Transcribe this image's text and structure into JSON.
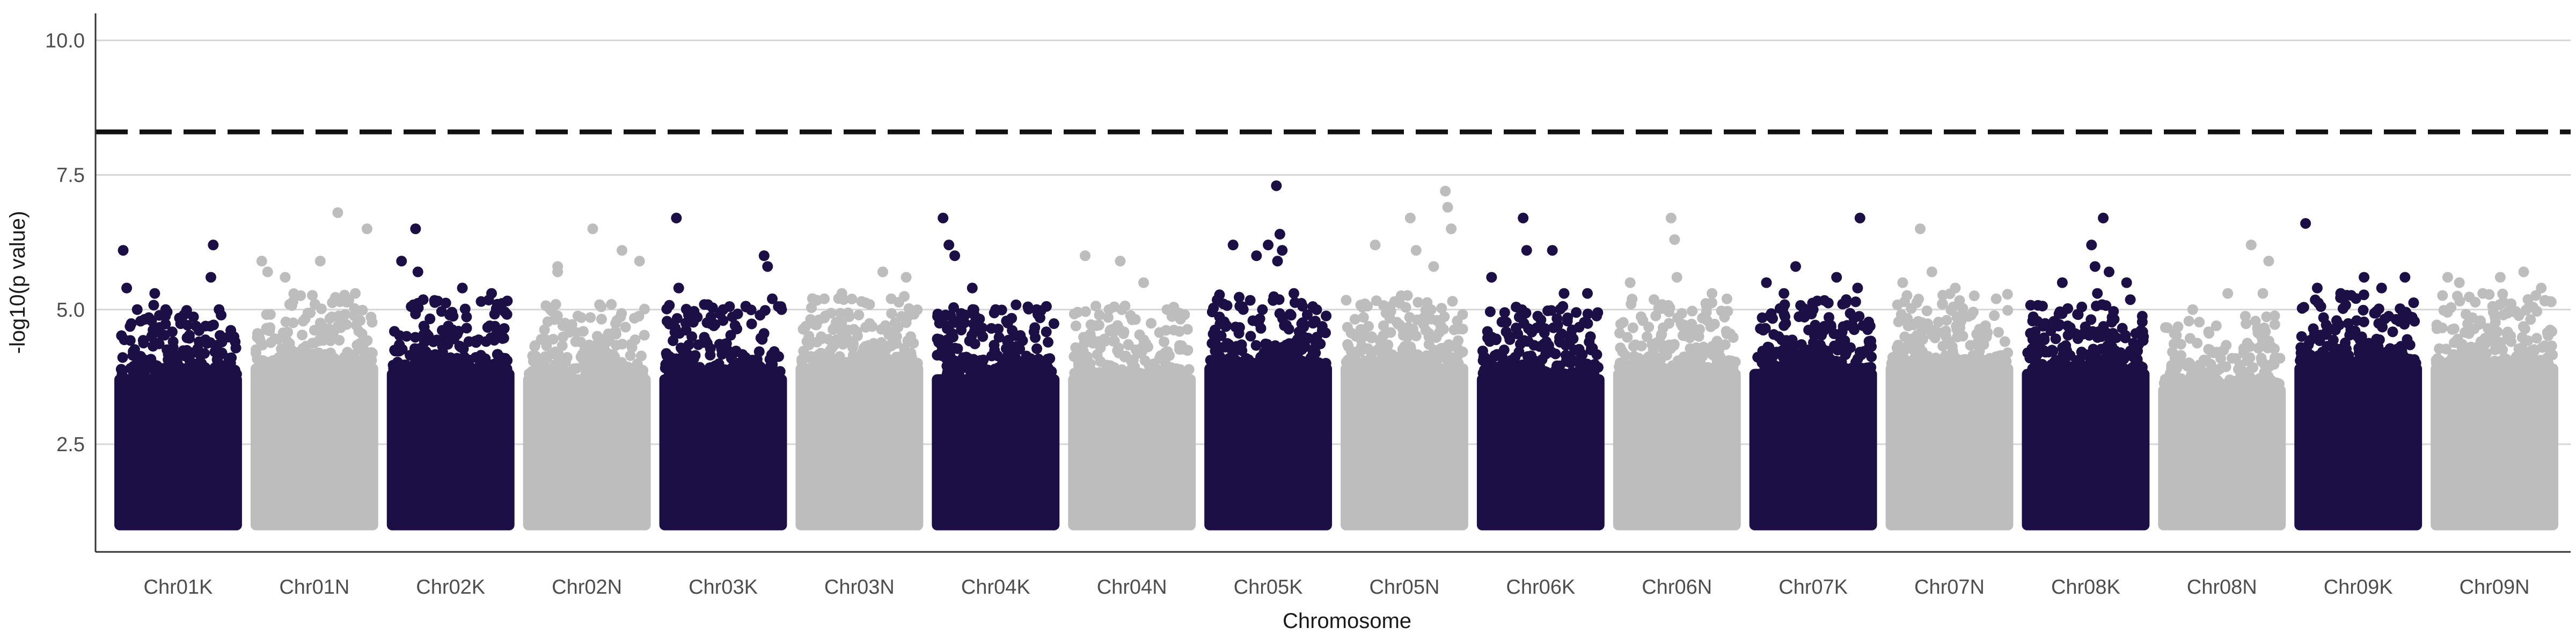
{
  "chart_data": {
    "type": "scatter",
    "subtype": "manhattan",
    "title": "",
    "xlabel": "Chromosome",
    "ylabel": "-log10(p value)",
    "ylim": [
      0.5,
      10.5
    ],
    "yticks": [
      2.5,
      5.0,
      7.5,
      10.0
    ],
    "ytick_labels": [
      "2.5",
      "5.0",
      "7.5",
      "10.0"
    ],
    "grid": "horizontal major lines",
    "legend": "none",
    "threshold": {
      "value": 8.3,
      "style": "dashed",
      "color": "#111111"
    },
    "point_min": 1.0,
    "colors": {
      "odd": "#1c0f45",
      "even": "#bdbdbd"
    },
    "categories": [
      "Chr01K",
      "Chr01N",
      "Chr02K",
      "Chr02N",
      "Chr03K",
      "Chr03N",
      "Chr04K",
      "Chr04N",
      "Chr05K",
      "Chr05N",
      "Chr06K",
      "Chr06N",
      "Chr07K",
      "Chr07N",
      "Chr08K",
      "Chr08N",
      "Chr09K",
      "Chr09N"
    ],
    "chromosomes": [
      {
        "name": "Chr01K",
        "color": "#1c0f45",
        "band_top": 3.8,
        "tall_points": [
          [
            0.03,
            6.1
          ],
          [
            0.06,
            5.4
          ],
          [
            0.15,
            5.0
          ],
          [
            0.3,
            5.3
          ],
          [
            0.55,
            4.9
          ],
          [
            0.78,
            5.6
          ],
          [
            0.8,
            6.2
          ],
          [
            0.85,
            5.0
          ]
        ]
      },
      {
        "name": "Chr01N",
        "color": "#bdbdbd",
        "band_top": 4.0,
        "tall_points": [
          [
            0.05,
            5.9
          ],
          [
            0.1,
            5.7
          ],
          [
            0.25,
            5.6
          ],
          [
            0.55,
            5.9
          ],
          [
            0.7,
            6.8
          ],
          [
            0.95,
            6.5
          ],
          [
            0.85,
            5.3
          ]
        ]
      },
      {
        "name": "Chr02K",
        "color": "#1c0f45",
        "band_top": 3.9,
        "tall_points": [
          [
            0.08,
            5.9
          ],
          [
            0.2,
            6.5
          ],
          [
            0.22,
            5.7
          ],
          [
            0.6,
            5.4
          ],
          [
            0.85,
            5.3
          ],
          [
            0.9,
            5.1
          ]
        ]
      },
      {
        "name": "Chr02N",
        "color": "#bdbdbd",
        "band_top": 3.8,
        "tall_points": [
          [
            0.25,
            5.8
          ],
          [
            0.25,
            5.7
          ],
          [
            0.55,
            6.5
          ],
          [
            0.8,
            6.1
          ],
          [
            0.95,
            5.9
          ]
        ]
      },
      {
        "name": "Chr03K",
        "color": "#1c0f45",
        "band_top": 3.8,
        "tall_points": [
          [
            0.1,
            6.7
          ],
          [
            0.12,
            5.4
          ],
          [
            0.5,
            5.0
          ],
          [
            0.85,
            6.0
          ],
          [
            0.88,
            5.8
          ],
          [
            0.92,
            5.2
          ]
        ]
      },
      {
        "name": "Chr03N",
        "color": "#bdbdbd",
        "band_top": 4.0,
        "tall_points": [
          [
            0.2,
            5.2
          ],
          [
            0.35,
            5.3
          ],
          [
            0.7,
            5.7
          ],
          [
            0.9,
            5.6
          ]
        ]
      },
      {
        "name": "Chr04K",
        "color": "#1c0f45",
        "band_top": 3.8,
        "tall_points": [
          [
            0.05,
            6.7
          ],
          [
            0.1,
            6.2
          ],
          [
            0.15,
            6.0
          ],
          [
            0.3,
            5.4
          ],
          [
            0.5,
            5.0
          ],
          [
            0.85,
            5.0
          ]
        ]
      },
      {
        "name": "Chr04N",
        "color": "#bdbdbd",
        "band_top": 3.8,
        "tall_points": [
          [
            0.1,
            6.0
          ],
          [
            0.4,
            5.9
          ],
          [
            0.6,
            5.5
          ],
          [
            0.8,
            5.0
          ]
        ]
      },
      {
        "name": "Chr05K",
        "color": "#1c0f45",
        "band_top": 4.0,
        "tall_points": [
          [
            0.2,
            6.2
          ],
          [
            0.4,
            6.0
          ],
          [
            0.5,
            6.2
          ],
          [
            0.6,
            6.4
          ],
          [
            0.62,
            6.1
          ],
          [
            0.58,
            5.9
          ],
          [
            0.57,
            7.3
          ],
          [
            0.72,
            5.3
          ]
        ]
      },
      {
        "name": "Chr05N",
        "color": "#bdbdbd",
        "band_top": 4.0,
        "tall_points": [
          [
            0.25,
            6.2
          ],
          [
            0.55,
            6.7
          ],
          [
            0.6,
            6.1
          ],
          [
            0.75,
            5.8
          ],
          [
            0.85,
            7.2
          ],
          [
            0.87,
            6.9
          ],
          [
            0.9,
            6.5
          ]
        ]
      },
      {
        "name": "Chr06K",
        "color": "#1c0f45",
        "band_top": 3.8,
        "tall_points": [
          [
            0.08,
            5.6
          ],
          [
            0.35,
            6.7
          ],
          [
            0.38,
            6.1
          ],
          [
            0.6,
            6.1
          ],
          [
            0.7,
            5.3
          ],
          [
            0.9,
            5.3
          ]
        ]
      },
      {
        "name": "Chr06N",
        "color": "#bdbdbd",
        "band_top": 3.9,
        "tall_points": [
          [
            0.1,
            5.5
          ],
          [
            0.45,
            6.7
          ],
          [
            0.48,
            6.3
          ],
          [
            0.5,
            5.6
          ],
          [
            0.8,
            5.3
          ]
        ]
      },
      {
        "name": "Chr07K",
        "color": "#1c0f45",
        "band_top": 3.9,
        "tall_points": [
          [
            0.1,
            5.5
          ],
          [
            0.25,
            5.3
          ],
          [
            0.35,
            5.8
          ],
          [
            0.5,
            5.0
          ],
          [
            0.7,
            5.6
          ],
          [
            0.9,
            6.7
          ],
          [
            0.88,
            5.4
          ]
        ]
      },
      {
        "name": "Chr07N",
        "color": "#bdbdbd",
        "band_top": 4.0,
        "tall_points": [
          [
            0.1,
            5.5
          ],
          [
            0.25,
            6.5
          ],
          [
            0.35,
            5.7
          ],
          [
            0.55,
            5.4
          ],
          [
            0.9,
            5.2
          ]
        ]
      },
      {
        "name": "Chr08K",
        "color": "#1c0f45",
        "band_top": 3.9,
        "tall_points": [
          [
            0.3,
            5.5
          ],
          [
            0.55,
            6.2
          ],
          [
            0.58,
            5.8
          ],
          [
            0.6,
            5.3
          ],
          [
            0.65,
            6.7
          ],
          [
            0.7,
            5.7
          ],
          [
            0.85,
            5.5
          ]
        ]
      },
      {
        "name": "Chr08N",
        "color": "#bdbdbd",
        "band_top": 3.6,
        "tall_points": [
          [
            0.25,
            5.0
          ],
          [
            0.55,
            5.3
          ],
          [
            0.75,
            6.2
          ],
          [
            0.85,
            5.3
          ],
          [
            0.9,
            5.9
          ]
        ]
      },
      {
        "name": "Chr09K",
        "color": "#1c0f45",
        "band_top": 4.0,
        "tall_points": [
          [
            0.05,
            6.6
          ],
          [
            0.15,
            5.4
          ],
          [
            0.35,
            5.3
          ],
          [
            0.55,
            5.6
          ],
          [
            0.7,
            5.4
          ],
          [
            0.9,
            5.6
          ]
        ]
      },
      {
        "name": "Chr09N",
        "color": "#bdbdbd",
        "band_top": 4.0,
        "tall_points": [
          [
            0.1,
            5.6
          ],
          [
            0.2,
            5.5
          ],
          [
            0.4,
            5.3
          ],
          [
            0.55,
            5.6
          ],
          [
            0.75,
            5.7
          ],
          [
            0.9,
            5.4
          ]
        ]
      }
    ]
  }
}
